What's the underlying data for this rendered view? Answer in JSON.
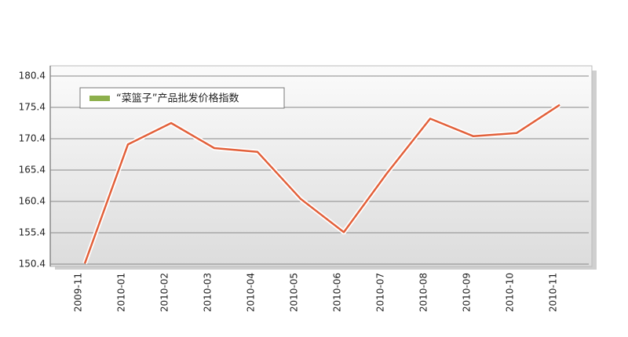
{
  "chart_data": {
    "type": "line",
    "categories": [
      "2009-11",
      "2010-01",
      "2010-02",
      "2010-03",
      "2010-04",
      "2010-05",
      "2010-06",
      "2010-07",
      "2010-08",
      "2010-09",
      "2010-10",
      "2010-11"
    ],
    "series": [
      {
        "name": "“菜篮子”产品批发价格指数",
        "color": "#e2603a",
        "legend_color": "#8db04c",
        "values": [
          150.5,
          169.5,
          172.9,
          168.9,
          168.3,
          160.8,
          155.5,
          164.9,
          173.6,
          170.8,
          171.3,
          175.8
        ]
      }
    ],
    "ylim": [
      150.4,
      180.4
    ],
    "yticks": [
      150.4,
      155.4,
      160.4,
      165.4,
      170.4,
      175.4,
      180.4
    ],
    "grid": true,
    "legend": "upper left"
  }
}
